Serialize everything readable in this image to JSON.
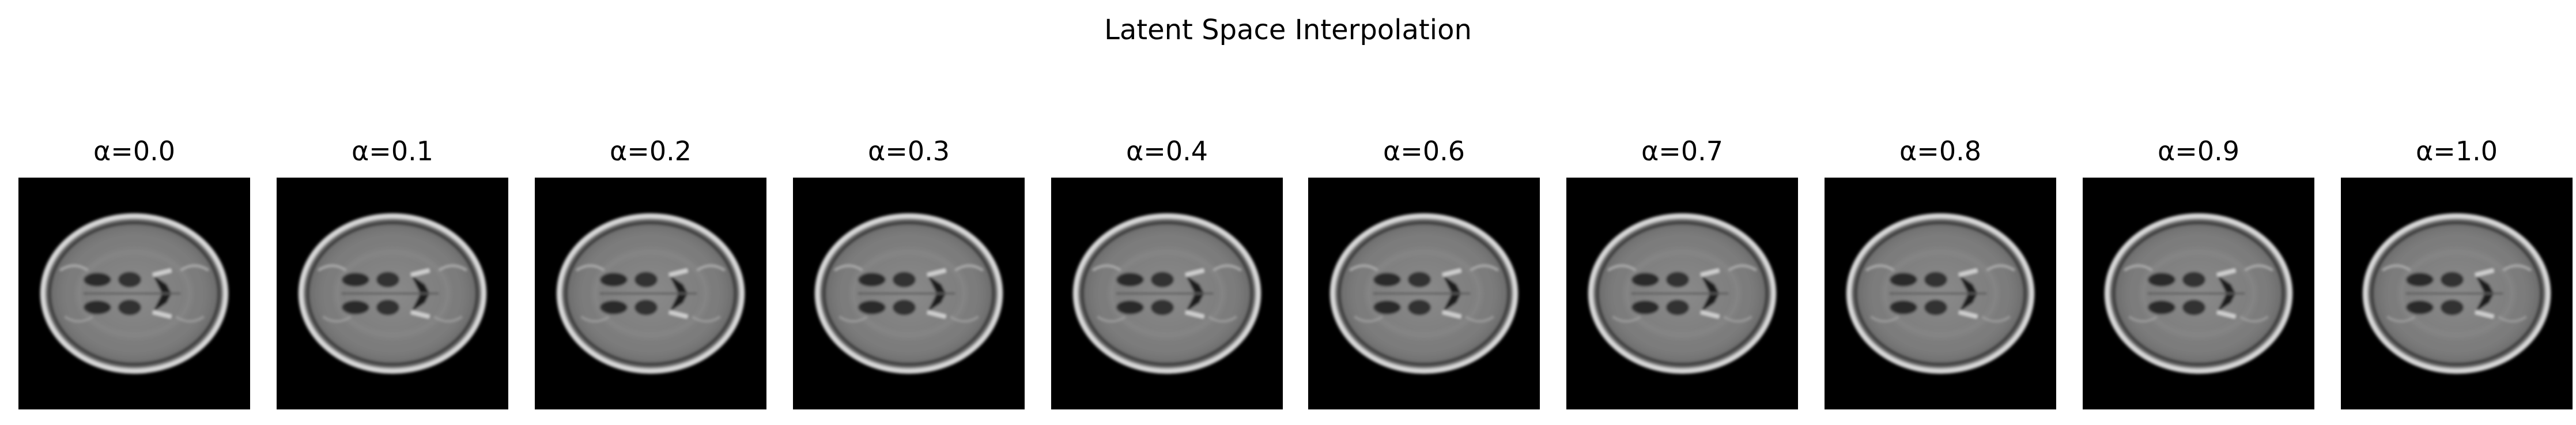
{
  "figure": {
    "title": "Latent Space Interpolation",
    "panels": [
      {
        "title": "α=0.0",
        "alpha": 0.0
      },
      {
        "title": "α=0.1",
        "alpha": 0.1
      },
      {
        "title": "α=0.2",
        "alpha": 0.2
      },
      {
        "title": "α=0.3",
        "alpha": 0.3
      },
      {
        "title": "α=0.4",
        "alpha": 0.4
      },
      {
        "title": "α=0.6",
        "alpha": 0.6
      },
      {
        "title": "α=0.7",
        "alpha": 0.7
      },
      {
        "title": "α=0.8",
        "alpha": 0.8
      },
      {
        "title": "α=0.9",
        "alpha": 0.9
      },
      {
        "title": "α=1.0",
        "alpha": 1.0
      }
    ],
    "image_description": "grayscale axial brain MRI slice",
    "colors": {
      "background": "#ffffff",
      "image_background": "#000000"
    }
  }
}
